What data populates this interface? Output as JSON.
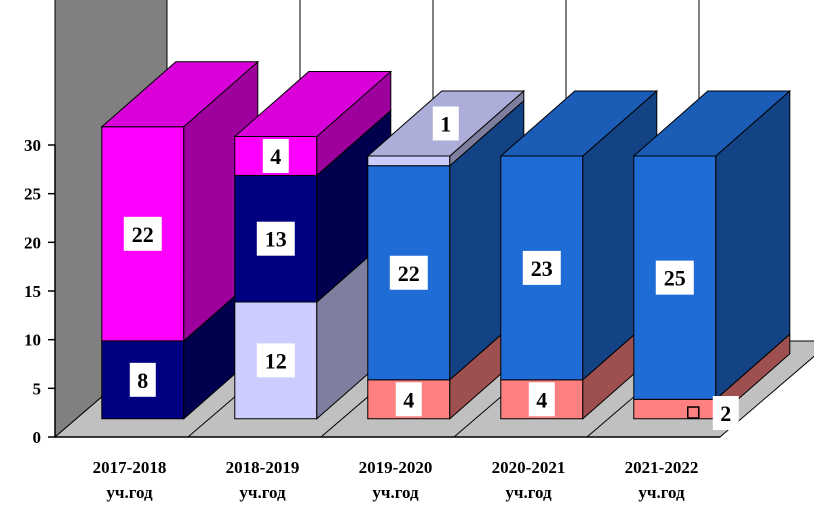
{
  "chart_data": {
    "type": "bar",
    "stacked": true,
    "three_d": true,
    "categories": [
      [
        "2017-2018",
        "уч.год"
      ],
      [
        "2018-2019",
        "уч.год"
      ],
      [
        "2019-2020",
        "уч.год"
      ],
      [
        "2020-2021",
        "уч.год"
      ],
      [
        "2021-2022",
        "уч.год"
      ]
    ],
    "ylim": [
      0,
      30
    ],
    "yticks": [
      "0",
      "5",
      "10",
      "15",
      "20",
      "25",
      "30"
    ],
    "grid": true,
    "legend": "none",
    "bars": [
      {
        "segments": [
          {
            "value": 8,
            "label": "8",
            "color": "#000080"
          },
          {
            "value": 22,
            "label": "22",
            "color": "#ff00ff"
          }
        ]
      },
      {
        "segments": [
          {
            "value": 12,
            "label": "12",
            "color": "#ccccff"
          },
          {
            "value": 13,
            "label": "13",
            "color": "#000080"
          },
          {
            "value": 4,
            "label": "4",
            "color": "#ff00ff"
          }
        ]
      },
      {
        "segments": [
          {
            "value": 4,
            "label": "4",
            "color": "#ff8080"
          },
          {
            "value": 22,
            "label": "22",
            "color": "#1f6cd6"
          },
          {
            "value": 1,
            "label": "1",
            "color": "#ccccff"
          }
        ]
      },
      {
        "segments": [
          {
            "value": 4,
            "label": "4",
            "color": "#ff8080"
          },
          {
            "value": 23,
            "label": "23",
            "color": "#1f6cd6"
          }
        ]
      },
      {
        "segments": [
          {
            "value": 2,
            "label": "2",
            "color": "#ff8080"
          },
          {
            "value": 25,
            "label": "25",
            "color": "#1f6cd6"
          }
        ]
      }
    ],
    "colors": {
      "wall": "#808080",
      "back_wall": "#ffffff",
      "floor": "#c0c0c0",
      "grid": "#000000"
    }
  }
}
